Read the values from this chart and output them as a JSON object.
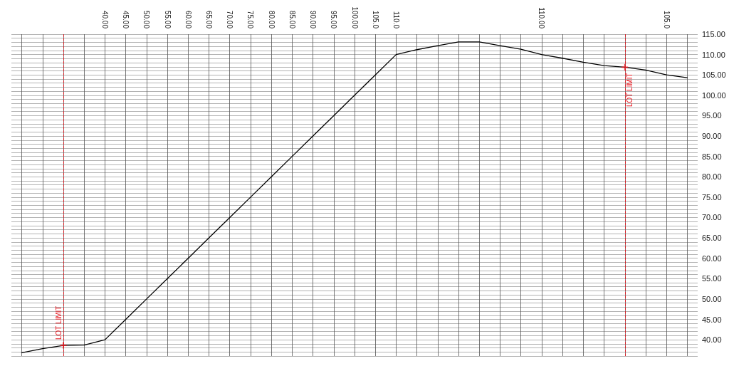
{
  "chart_data": {
    "type": "line",
    "categories": [
      null,
      null,
      null,
      null,
      "40.00",
      "45.00",
      "50.00",
      "55.00",
      "60.00",
      "65.00",
      "70.00",
      "75.00",
      "80.00",
      "85.00",
      "90.00",
      "95.00",
      "100.00",
      "105.0",
      "110.0",
      null,
      null,
      null,
      null,
      null,
      null,
      "110.00",
      null,
      null,
      null,
      null,
      null,
      "105.0",
      null
    ],
    "ylim": [
      36,
      115
    ],
    "yticks": [
      {
        "value": 36,
        "label": null
      },
      {
        "value": 37,
        "label": null
      },
      {
        "value": 38,
        "label": null
      },
      {
        "value": 39,
        "label": null
      },
      {
        "value": 40,
        "label": "40.00"
      },
      {
        "value": 41,
        "label": null
      },
      {
        "value": 42,
        "label": null
      },
      {
        "value": 43,
        "label": null
      },
      {
        "value": 44,
        "label": null
      },
      {
        "value": 45,
        "label": "45.00"
      },
      {
        "value": 46,
        "label": null
      },
      {
        "value": 47,
        "label": null
      },
      {
        "value": 48,
        "label": null
      },
      {
        "value": 49,
        "label": null
      },
      {
        "value": 50,
        "label": "50.00"
      },
      {
        "value": 51,
        "label": null
      },
      {
        "value": 52,
        "label": null
      },
      {
        "value": 53,
        "label": null
      },
      {
        "value": 54,
        "label": null
      },
      {
        "value": 55,
        "label": "55.00"
      },
      {
        "value": 56,
        "label": null
      },
      {
        "value": 57,
        "label": null
      },
      {
        "value": 58,
        "label": null
      },
      {
        "value": 59,
        "label": null
      },
      {
        "value": 60,
        "label": "60.00"
      },
      {
        "value": 61,
        "label": null
      },
      {
        "value": 62,
        "label": null
      },
      {
        "value": 63,
        "label": null
      },
      {
        "value": 64,
        "label": null
      },
      {
        "value": 65,
        "label": "65.00"
      },
      {
        "value": 66,
        "label": null
      },
      {
        "value": 67,
        "label": null
      },
      {
        "value": 68,
        "label": null
      },
      {
        "value": 69,
        "label": null
      },
      {
        "value": 70,
        "label": "70.00"
      },
      {
        "value": 71,
        "label": null
      },
      {
        "value": 72,
        "label": null
      },
      {
        "value": 73,
        "label": null
      },
      {
        "value": 74,
        "label": null
      },
      {
        "value": 75,
        "label": "75.00"
      },
      {
        "value": 76,
        "label": null
      },
      {
        "value": 77,
        "label": null
      },
      {
        "value": 78,
        "label": null
      },
      {
        "value": 79,
        "label": null
      },
      {
        "value": 80,
        "label": "80.00"
      },
      {
        "value": 81,
        "label": null
      },
      {
        "value": 82,
        "label": null
      },
      {
        "value": 83,
        "label": null
      },
      {
        "value": 84,
        "label": null
      },
      {
        "value": 85,
        "label": "85.00"
      },
      {
        "value": 86,
        "label": null
      },
      {
        "value": 87,
        "label": null
      },
      {
        "value": 88,
        "label": null
      },
      {
        "value": 89,
        "label": null
      },
      {
        "value": 90,
        "label": "90.00"
      },
      {
        "value": 91,
        "label": null
      },
      {
        "value": 92,
        "label": null
      },
      {
        "value": 93,
        "label": null
      },
      {
        "value": 94,
        "label": null
      },
      {
        "value": 95,
        "label": "95.00"
      },
      {
        "value": 96,
        "label": null
      },
      {
        "value": 97,
        "label": null
      },
      {
        "value": 98,
        "label": null
      },
      {
        "value": 99,
        "label": null
      },
      {
        "value": 100,
        "label": "100.00"
      },
      {
        "value": 101,
        "label": null
      },
      {
        "value": 102,
        "label": null
      },
      {
        "value": 103,
        "label": null
      },
      {
        "value": 104,
        "label": null
      },
      {
        "value": 105,
        "label": "105.00"
      },
      {
        "value": 106,
        "label": null
      },
      {
        "value": 107,
        "label": null
      },
      {
        "value": 108,
        "label": null
      },
      {
        "value": 109,
        "label": null
      },
      {
        "value": 110,
        "label": "110.00"
      },
      {
        "value": 111,
        "label": null
      },
      {
        "value": 112,
        "label": null
      },
      {
        "value": 113,
        "label": null
      },
      {
        "value": 114,
        "label": null
      },
      {
        "value": 115,
        "label": "115.00"
      }
    ],
    "grid": true,
    "series": [
      {
        "color": "#000000",
        "values": [
          36.8,
          37.8,
          38.6,
          38.7,
          40,
          45,
          50,
          55,
          60,
          65,
          70,
          75,
          80,
          85,
          90,
          95,
          100,
          105,
          110,
          111.2,
          112.2,
          113.1,
          113.1,
          112.2,
          111.3,
          110,
          109.1,
          108.1,
          107.3,
          106.9,
          106.2,
          105,
          104.3
        ]
      },
      {
        "type": "scatter",
        "color": "#e8141c",
        "marker": "cross",
        "values": [
          null,
          null,
          38.6,
          null,
          null,
          null,
          null,
          null,
          null,
          null,
          null,
          null,
          null,
          null,
          null,
          null,
          null,
          null,
          null,
          null,
          null,
          null,
          null,
          null,
          null,
          null,
          null,
          null,
          null,
          106.9,
          null,
          null,
          null
        ]
      }
    ],
    "annotations": [
      "LOT LIMIT",
      "LOT LIMIT"
    ]
  }
}
